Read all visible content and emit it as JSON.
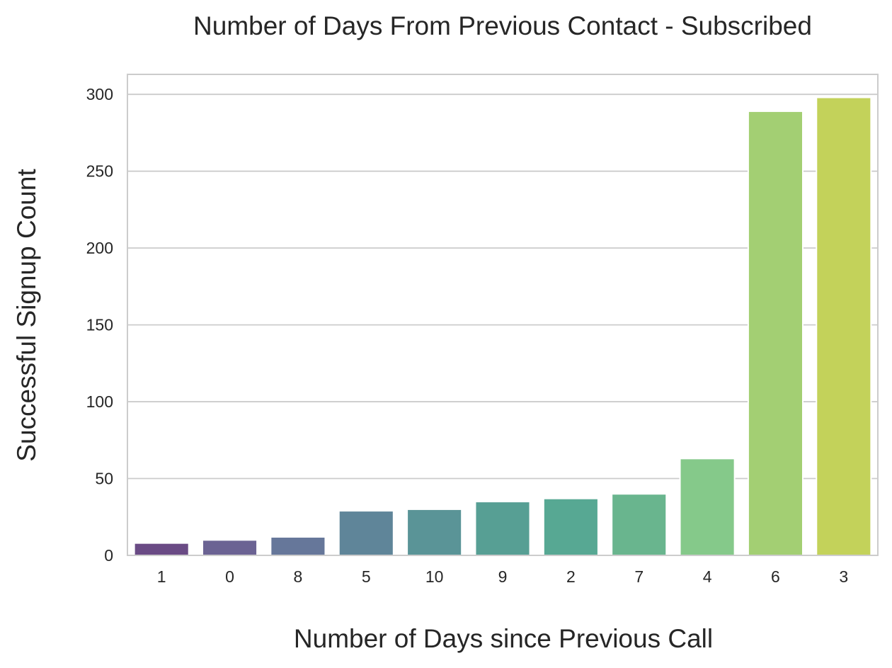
{
  "chart_data": {
    "type": "bar",
    "title": "Number of Days From Previous Contact - Subscribed",
    "xlabel": "Number of Days since Previous Call",
    "ylabel": "Successful Signup Count",
    "categories": [
      "1",
      "0",
      "8",
      "5",
      "10",
      "9",
      "2",
      "7",
      "4",
      "6",
      "3"
    ],
    "values": [
      8,
      10,
      12,
      29,
      30,
      35,
      37,
      40,
      63,
      289,
      298
    ],
    "colors": [
      "#6a4b85",
      "#6b6393",
      "#66779a",
      "#5f8599",
      "#5a9497",
      "#579f94",
      "#57a893",
      "#69b58e",
      "#85c98a",
      "#a3cf73",
      "#c3d25a"
    ],
    "ylim": [
      0,
      313
    ],
    "yticks": [
      0,
      50,
      100,
      150,
      200,
      250,
      300
    ],
    "grid": "horizontal",
    "legend": "none"
  }
}
